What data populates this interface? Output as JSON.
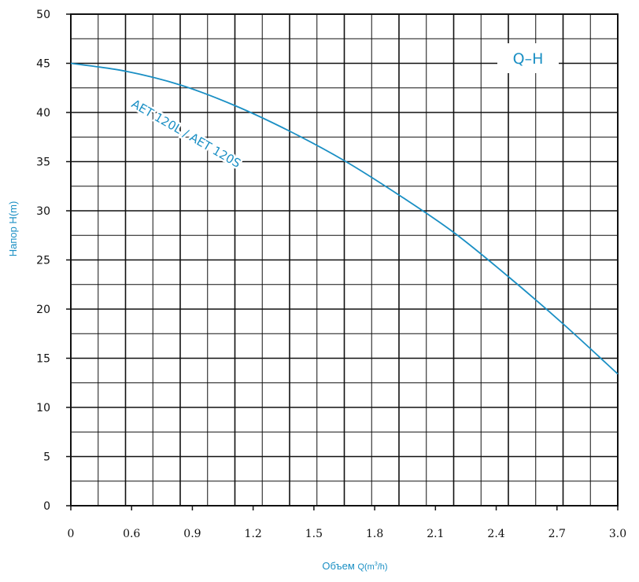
{
  "chart_data": {
    "type": "line",
    "title": "",
    "legend_title": "Q–H",
    "ylabel": "Напор H(m)",
    "xlabel_main": "Объем ",
    "xlabel_q": "Q(m",
    "xlabel_sup": "3",
    "xlabel_tail": "/h)",
    "x_ticks": [
      "0",
      "0.6",
      "0.9",
      "1.2",
      "1.5",
      "1.8",
      "2.1",
      "2.4",
      "2.7",
      "3.0"
    ],
    "y_ticks": [
      "0",
      "5",
      "10",
      "15",
      "20",
      "25",
      "30",
      "35",
      "40",
      "45",
      "50"
    ],
    "ylim": [
      0,
      50
    ],
    "grid": true,
    "accent_color": "#1a8fc4",
    "series": [
      {
        "name": "AET 120L / AET 120S",
        "x": [
          0,
          0.3,
          0.6,
          0.9,
          1.2,
          1.5,
          1.8,
          2.1,
          2.4,
          2.7,
          3.0
        ],
        "y": [
          45,
          44.2,
          42.8,
          40.7,
          38.1,
          35.1,
          31.6,
          27.8,
          23.3,
          18.5,
          13.4
        ]
      }
    ]
  }
}
